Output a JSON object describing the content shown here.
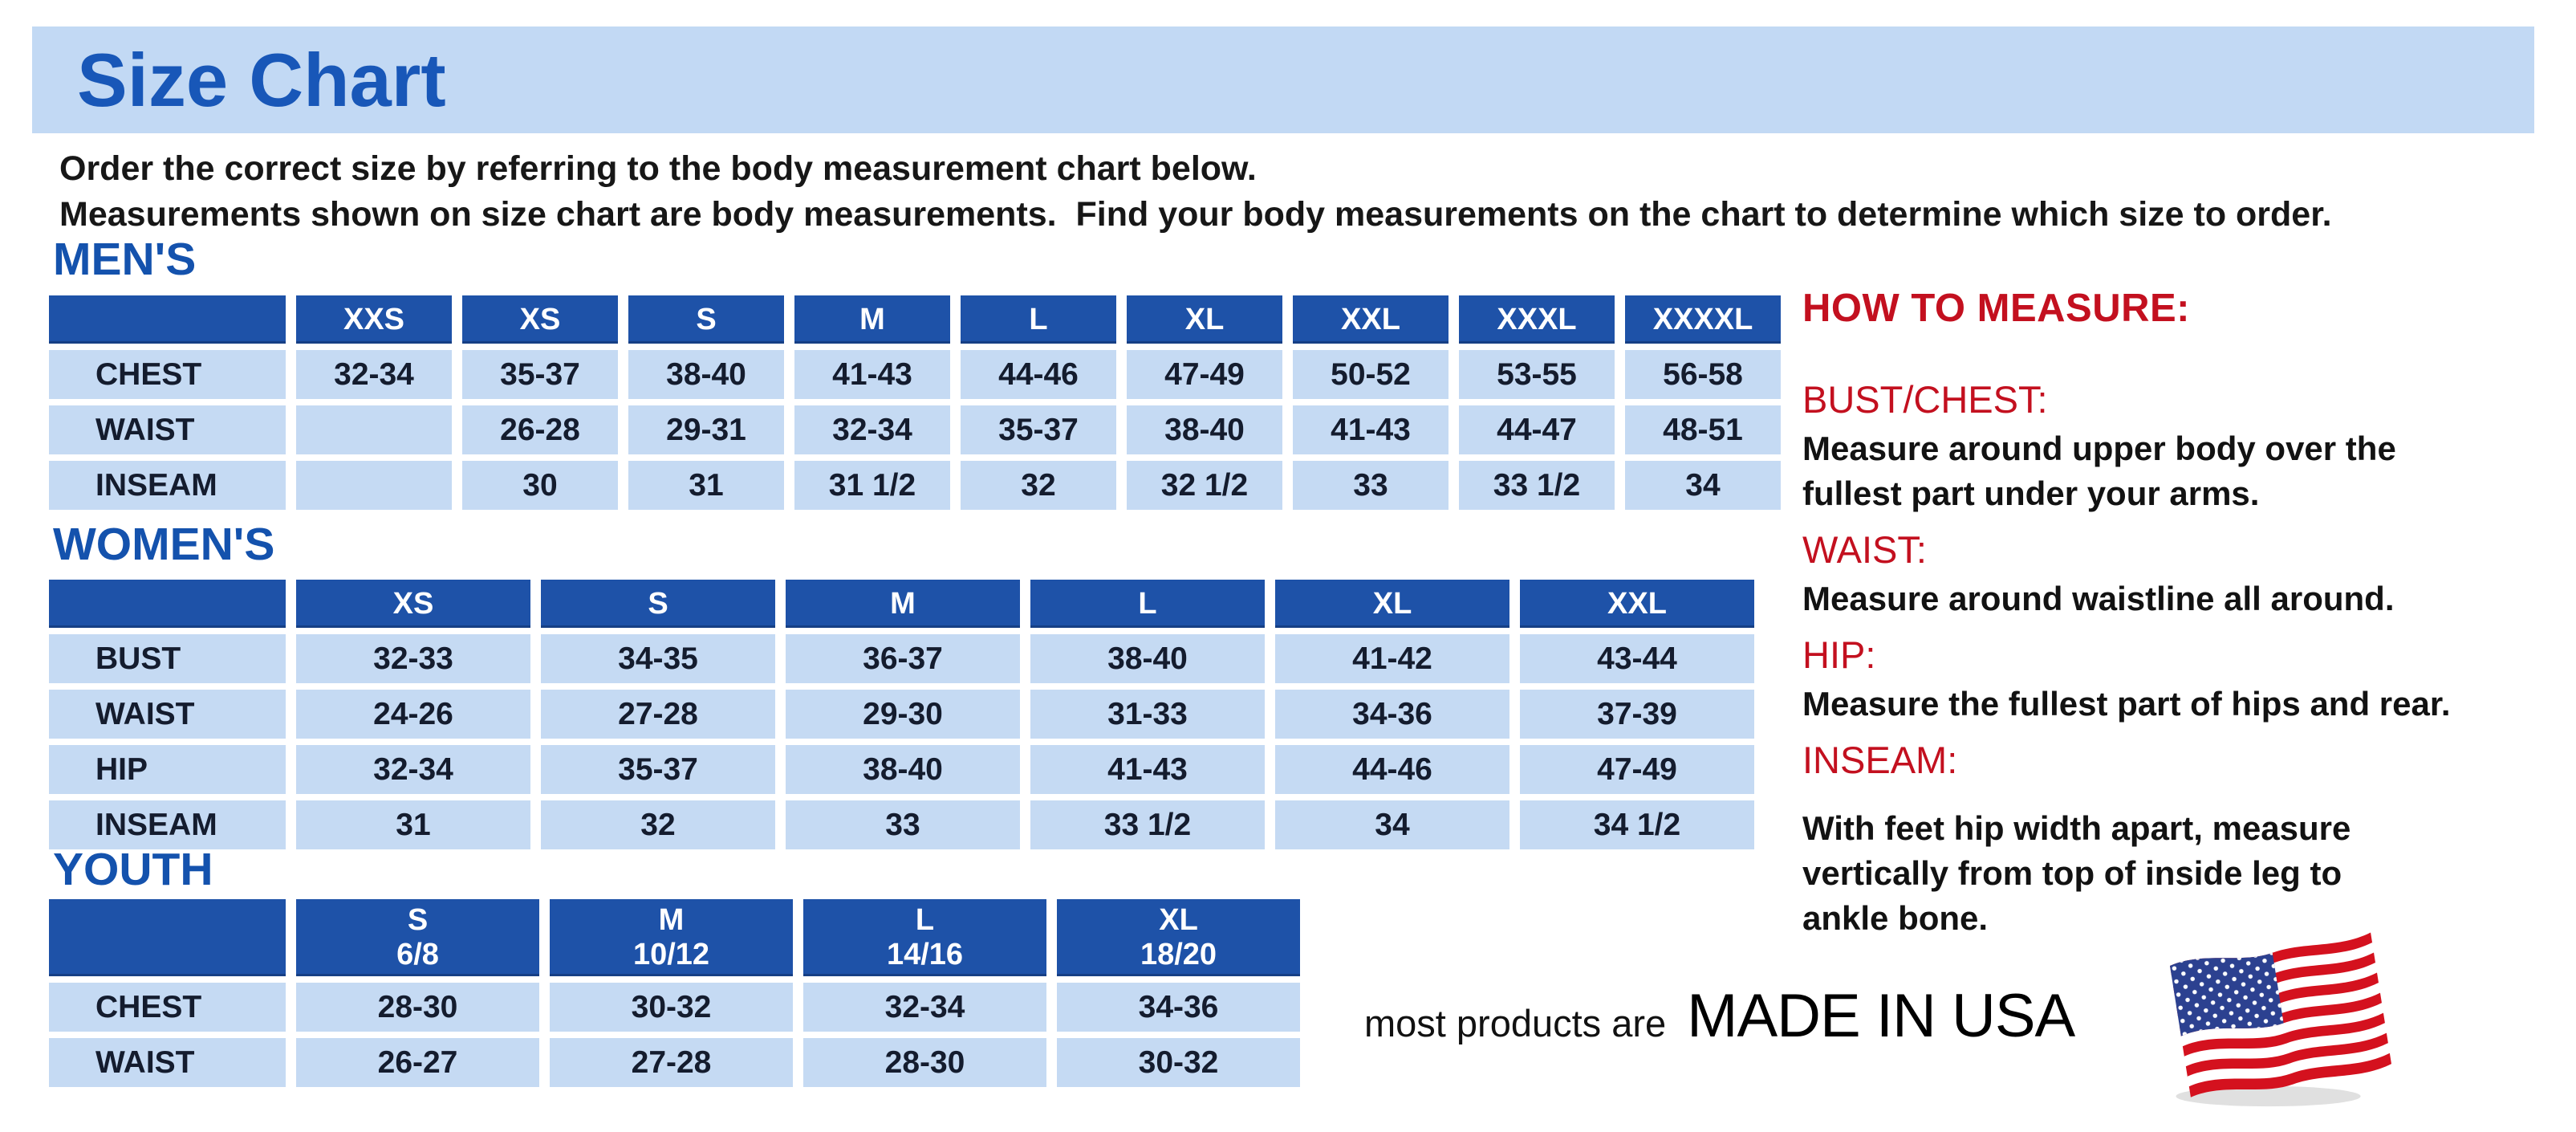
{
  "header": {
    "title": "Size Chart"
  },
  "intro": {
    "lines": [
      "Order the correct size by referring to the body measurement chart below.",
      "Measurements shown on size chart are body measurements.  Find your body measurements on the chart to determine which size to order."
    ]
  },
  "tables": {
    "mens": {
      "heading": "MEN'S",
      "columns": [
        "XXS",
        "XS",
        "S",
        "M",
        "L",
        "XL",
        "XXL",
        "XXXL",
        "XXXXL"
      ],
      "rows": [
        {
          "label": "CHEST",
          "values": [
            "32-34",
            "35-37",
            "38-40",
            "41-43",
            "44-46",
            "47-49",
            "50-52",
            "53-55",
            "56-58"
          ]
        },
        {
          "label": "WAIST",
          "values": [
            "",
            "26-28",
            "29-31",
            "32-34",
            "35-37",
            "38-40",
            "41-43",
            "44-47",
            "48-51"
          ]
        },
        {
          "label": "INSEAM",
          "values": [
            "",
            "30",
            "31",
            "31 1/2",
            "32",
            "32 1/2",
            "33",
            "33 1/2",
            "34"
          ]
        }
      ]
    },
    "womens": {
      "heading": "WOMEN'S",
      "columns": [
        "XS",
        "S",
        "M",
        "L",
        "XL",
        "XXL"
      ],
      "rows": [
        {
          "label": "BUST",
          "values": [
            "32-33",
            "34-35",
            "36-37",
            "38-40",
            "41-42",
            "43-44"
          ]
        },
        {
          "label": "WAIST",
          "values": [
            "24-26",
            "27-28",
            "29-30",
            "31-33",
            "34-36",
            "37-39"
          ]
        },
        {
          "label": "HIP",
          "values": [
            "32-34",
            "35-37",
            "38-40",
            "41-43",
            "44-46",
            "47-49"
          ]
        },
        {
          "label": "INSEAM",
          "values": [
            "31",
            "32",
            "33",
            "33 1/2",
            "34",
            "34 1/2"
          ]
        }
      ]
    },
    "youth": {
      "heading": "YOUTH",
      "columns": [
        {
          "size": "S",
          "range": "6/8"
        },
        {
          "size": "M",
          "range": "10/12"
        },
        {
          "size": "L",
          "range": "14/16"
        },
        {
          "size": "XL",
          "range": "18/20"
        }
      ],
      "rows": [
        {
          "label": "CHEST",
          "values": [
            "28-30",
            "30-32",
            "32-34",
            "34-36"
          ]
        },
        {
          "label": "WAIST",
          "values": [
            "26-27",
            "27-28",
            "28-30",
            "30-32"
          ]
        }
      ]
    }
  },
  "how_to_measure": {
    "heading": "HOW TO MEASURE:",
    "sections": [
      {
        "label": "BUST/CHEST:",
        "lines": [
          "Measure around upper body over the",
          "fullest part under your arms."
        ]
      },
      {
        "label": "WAIST:",
        "lines": [
          "Measure around waistline all around."
        ]
      },
      {
        "label": "HIP:",
        "lines": [
          "Measure the fullest part of hips and rear."
        ]
      },
      {
        "label": "INSEAM:",
        "lines": [
          "With feet hip width apart, measure",
          "vertically from top of inside leg to",
          "ankle bone."
        ]
      }
    ]
  },
  "footer": {
    "prefix": "most products are",
    "emphasis": "MADE IN USA",
    "flag_icon": "usa-flag"
  },
  "colors": {
    "banner_bg": "#c2d9f4",
    "header_cell_bg": "#1e52a8",
    "data_cell_bg": "#c5daf3",
    "title_text": "#1857b8",
    "section_heading_text": "#1452ad",
    "accent_red": "#c3101f",
    "flag_red": "#d4111e",
    "flag_blue": "#2c4190"
  }
}
